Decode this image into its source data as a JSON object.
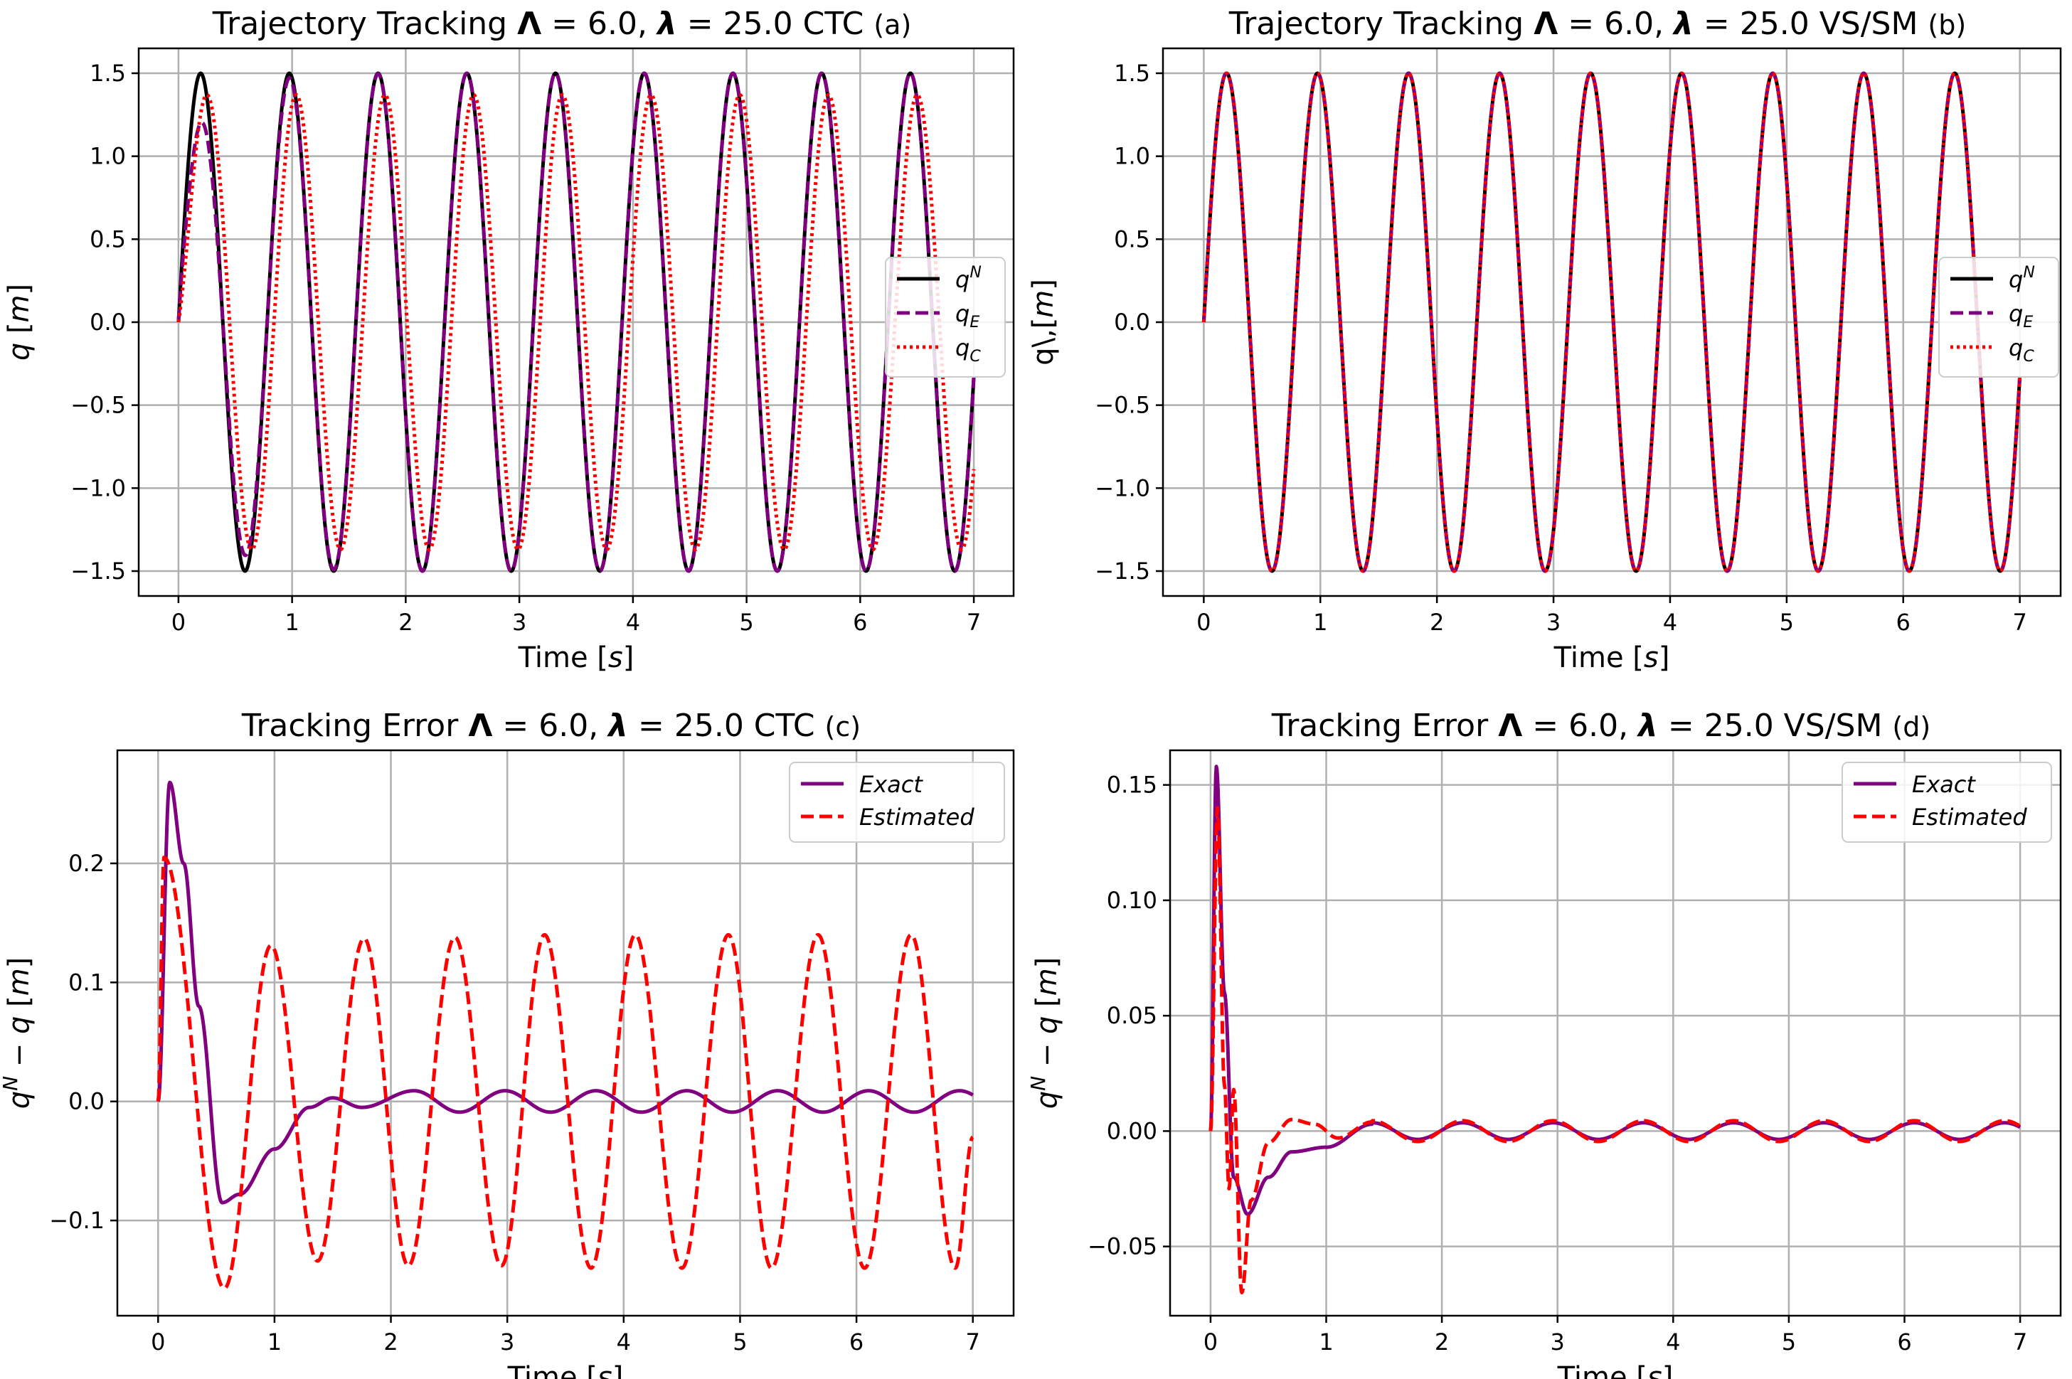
{
  "chart_data": [
    {
      "id": "a",
      "type": "line",
      "title": "Trajectory Tracking Λ = 6.0, λ = 25.0 CTC",
      "title_parts": {
        "prefix": "Trajectory Tracking ",
        "cap_lambda": "Λ",
        "cap_lambda_value": " = 6.0, ",
        "small_lambda": "λ",
        "small_lambda_value": " = 25.0 CTC"
      },
      "panel_tag": "(a)",
      "xlabel": "Time [s]",
      "ylabel": "q [m]",
      "xlim": [
        -0.35,
        7.35
      ],
      "ylim": [
        -1.65,
        1.65
      ],
      "xticks": [
        0,
        1,
        2,
        3,
        4,
        5,
        6,
        7
      ],
      "yticks": [
        -1.5,
        -1.0,
        -0.5,
        0.0,
        0.5,
        1.0,
        1.5
      ],
      "xtick_labels": [
        "0",
        "1",
        "2",
        "3",
        "4",
        "5",
        "6",
        "7"
      ],
      "ytick_labels": [
        "−1.5",
        "−1.0",
        "−0.5",
        "0.0",
        "0.5",
        "1.0",
        "1.5"
      ],
      "grid": true,
      "legend": "center-right",
      "legend_entries": [
        {
          "label": "q^N",
          "base": "q",
          "sup": "N",
          "sub": ""
        },
        {
          "label": "q_E",
          "base": "q",
          "sup": "",
          "sub": "E"
        },
        {
          "label": "q_C",
          "base": "q",
          "sup": "",
          "sub": "C"
        }
      ],
      "model": {
        "t_end": 7.0,
        "frequency_hz": 1.2807,
        "series": [
          {
            "name": "q^N",
            "kind": "sine",
            "amplitude": 1.5,
            "decay": 0,
            "color": "#000000",
            "dash": "solid"
          },
          {
            "name": "q_E",
            "kind": "sine_lag",
            "amplitude": 1.5,
            "lag_amp": 0.55,
            "lag_decay": 3.0,
            "color": "#800080",
            "dash": "dashed"
          },
          {
            "name": "q_C",
            "kind": "sine_scaled",
            "amplitude": 1.37,
            "phase_lag": 0.06,
            "color": "#ff0000",
            "dash": "dotted"
          }
        ]
      }
    },
    {
      "id": "b",
      "type": "line",
      "title": "Trajectory Tracking Λ = 6.0, λ = 25.0 VS/SM",
      "title_parts": {
        "prefix": "Trajectory Tracking ",
        "cap_lambda": "Λ",
        "cap_lambda_value": " = 6.0, ",
        "small_lambda": "λ",
        "small_lambda_value": " = 25.0 VS/SM"
      },
      "panel_tag": "(b)",
      "xlabel": "Time [s]",
      "ylabel": "q\\,[m]",
      "xlim": [
        -0.35,
        7.35
      ],
      "ylim": [
        -1.65,
        1.65
      ],
      "xticks": [
        0,
        1,
        2,
        3,
        4,
        5,
        6,
        7
      ],
      "yticks": [
        -1.5,
        -1.0,
        -0.5,
        0.0,
        0.5,
        1.0,
        1.5
      ],
      "xtick_labels": [
        "0",
        "1",
        "2",
        "3",
        "4",
        "5",
        "6",
        "7"
      ],
      "ytick_labels": [
        "−1.5",
        "−1.0",
        "−0.5",
        "0.0",
        "0.5",
        "1.0",
        "1.5"
      ],
      "grid": true,
      "legend": "center-right",
      "legend_entries": [
        {
          "label": "q^N",
          "base": "q",
          "sup": "N",
          "sub": ""
        },
        {
          "label": "q_E",
          "base": "q",
          "sup": "",
          "sub": "E"
        },
        {
          "label": "q_C",
          "base": "q",
          "sup": "",
          "sub": "C"
        }
      ],
      "model": {
        "t_end": 7.0,
        "frequency_hz": 1.2807,
        "series": [
          {
            "name": "q^N",
            "kind": "sine",
            "amplitude": 1.5,
            "color": "#000000",
            "dash": "solid"
          },
          {
            "name": "q_E",
            "kind": "sine",
            "amplitude": 1.5,
            "color": "#800080",
            "dash": "dashed"
          },
          {
            "name": "q_C",
            "kind": "sine",
            "amplitude": 1.5,
            "color": "#ff0000",
            "dash": "dotted"
          }
        ]
      }
    },
    {
      "id": "c",
      "type": "line",
      "title": "Tracking Error Λ = 6.0, λ = 25.0 CTC",
      "title_parts": {
        "prefix": "Tracking Error ",
        "cap_lambda": "Λ",
        "cap_lambda_value": " = 6.0, ",
        "small_lambda": "λ",
        "small_lambda_value": " = 25.0 CTC"
      },
      "panel_tag": "(c)",
      "xlabel": "Time [s]",
      "ylabel": "q^N − q [m]",
      "xlim": [
        -0.35,
        7.35
      ],
      "ylim": [
        -0.18,
        0.295
      ],
      "xticks": [
        0,
        1,
        2,
        3,
        4,
        5,
        6,
        7
      ],
      "yticks": [
        -0.1,
        0.0,
        0.1,
        0.2
      ],
      "xtick_labels": [
        "0",
        "1",
        "2",
        "3",
        "4",
        "5",
        "6",
        "7"
      ],
      "ytick_labels": [
        "−0.1",
        "0.0",
        "0.1",
        "0.2"
      ],
      "grid": true,
      "legend": "top-right",
      "legend_entries": [
        {
          "label": "Exact",
          "italic": true
        },
        {
          "label": "Estimated",
          "italic": true
        }
      ],
      "keypoints": {
        "Exact": [
          [
            0,
            0
          ],
          [
            0.1,
            0.268
          ],
          [
            0.22,
            0.2
          ],
          [
            0.35,
            0.08
          ],
          [
            0.55,
            -0.085
          ],
          [
            0.7,
            -0.078
          ],
          [
            1.0,
            -0.04
          ],
          [
            1.3,
            -0.005
          ],
          [
            1.5,
            0.003
          ],
          [
            1.75,
            -0.005
          ],
          [
            2.2,
            0.009
          ],
          [
            7.0,
            0.008
          ]
        ],
        "Estimated_peaks": [
          [
            0.05,
            0.205
          ],
          [
            0.57,
            -0.157
          ],
          [
            0.97,
            0.131
          ],
          [
            1.37,
            -0.134
          ],
          [
            1.77,
            0.137
          ],
          [
            2.15,
            -0.138
          ],
          [
            2.55,
            0.138
          ],
          [
            2.95,
            -0.138
          ],
          [
            3.32,
            0.14
          ],
          [
            3.72,
            -0.14
          ],
          [
            4.1,
            0.14
          ],
          [
            4.5,
            -0.14
          ],
          [
            4.9,
            0.14
          ],
          [
            5.27,
            -0.14
          ],
          [
            5.67,
            0.14
          ],
          [
            6.07,
            -0.14
          ],
          [
            6.47,
            0.14
          ],
          [
            6.85,
            -0.14
          ],
          [
            7.0,
            -0.03
          ]
        ]
      },
      "model": {
        "t_end": 7.0,
        "frequency_hz": 1.2807,
        "series": [
          {
            "name": "Exact",
            "color": "#800080",
            "dash": "solid"
          },
          {
            "name": "Estimated",
            "color": "#ff0000",
            "dash": "dashed"
          }
        ]
      }
    },
    {
      "id": "d",
      "type": "line",
      "title": "Tracking Error Λ = 6.0, λ = 25.0 VS/SM",
      "title_parts": {
        "prefix": "Tracking Error ",
        "cap_lambda": "Λ",
        "cap_lambda_value": " = 6.0, ",
        "small_lambda": "λ",
        "small_lambda_value": " = 25.0 VS/SM"
      },
      "panel_tag": "(d)",
      "xlabel": "Time [s]",
      "ylabel": "q^N − q [m]",
      "xlim": [
        -0.35,
        7.35
      ],
      "ylim": [
        -0.08,
        0.165
      ],
      "xticks": [
        0,
        1,
        2,
        3,
        4,
        5,
        6,
        7
      ],
      "yticks": [
        -0.05,
        0.0,
        0.05,
        0.1,
        0.15
      ],
      "xtick_labels": [
        "0",
        "1",
        "2",
        "3",
        "4",
        "5",
        "6",
        "7"
      ],
      "ytick_labels": [
        "−0.05",
        "0.00",
        "0.05",
        "0.10",
        "0.15"
      ],
      "grid": true,
      "legend": "top-right",
      "legend_entries": [
        {
          "label": "Exact",
          "italic": true
        },
        {
          "label": "Estimated",
          "italic": true
        }
      ],
      "keypoints": {
        "Exact": [
          [
            0.0,
            0.0
          ],
          [
            0.05,
            0.158
          ],
          [
            0.12,
            0.06
          ],
          [
            0.2,
            -0.02
          ],
          [
            0.32,
            -0.036
          ],
          [
            0.5,
            -0.02
          ],
          [
            0.7,
            -0.009
          ],
          [
            1.0,
            -0.007
          ],
          [
            1.4,
            0.003
          ],
          [
            7.0,
            0.003
          ]
        ],
        "Estimated": [
          [
            0.0,
            0.0
          ],
          [
            0.06,
            0.14
          ],
          [
            0.12,
            0.02
          ],
          [
            0.16,
            -0.025
          ],
          [
            0.2,
            0.018
          ],
          [
            0.27,
            -0.07
          ],
          [
            0.35,
            -0.03
          ],
          [
            0.5,
            -0.005
          ],
          [
            0.7,
            0.005
          ],
          [
            0.9,
            0.003
          ],
          [
            1.1,
            -0.003
          ],
          [
            1.4,
            0.004
          ],
          [
            7.0,
            0.003
          ]
        ]
      },
      "model": {
        "t_end": 7.0,
        "frequency_hz": 1.2807,
        "series": [
          {
            "name": "Exact",
            "color": "#800080",
            "dash": "solid"
          },
          {
            "name": "Estimated",
            "color": "#ff0000",
            "dash": "dashed"
          }
        ]
      }
    }
  ]
}
